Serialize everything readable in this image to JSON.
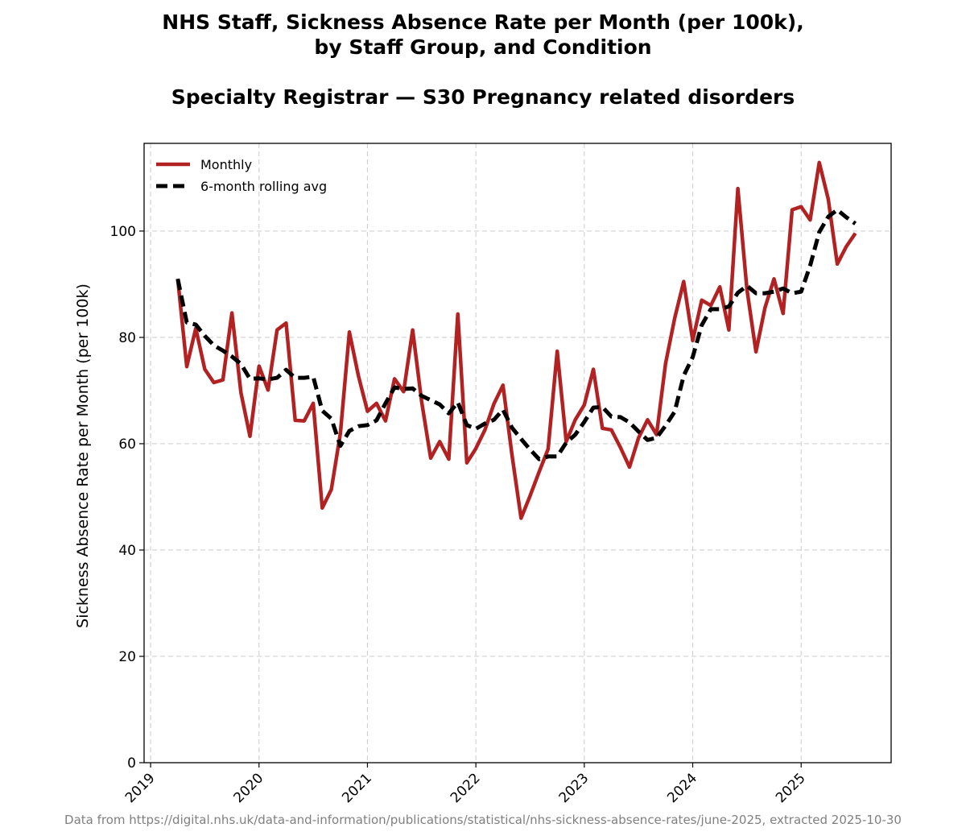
{
  "chart_data": {
    "type": "line",
    "title_line1": "NHS Staff, Sickness Absence Rate per Month (per 100k),",
    "title_line2": "by Staff Group, and Condition",
    "subtitle": "Specialty Registrar — S30 Pregnancy related disorders",
    "xlabel": "",
    "ylabel": "Sickness Absence Rate per Month (per 100k)",
    "xlim": [
      2018.94,
      2025.83
    ],
    "ylim": [
      0,
      116.5
    ],
    "yticks": [
      0,
      20,
      40,
      60,
      80,
      100
    ],
    "xticks": [
      2019,
      2020,
      2021,
      2022,
      2023,
      2024,
      2025
    ],
    "xtick_labels": [
      "2019",
      "2020",
      "2021",
      "2022",
      "2023",
      "2024",
      "2025"
    ],
    "grid": true,
    "legend_position": "top-left",
    "colors": {
      "monthly": "#b22222",
      "rolling": "#000000",
      "grid": "#d0d0d0",
      "footnote": "#808080"
    },
    "series": [
      {
        "name": "Monthly",
        "style": "solid",
        "start": "2019-04",
        "values": [
          91.0,
          74.5,
          81.7,
          74.0,
          71.5,
          72.0,
          84.6,
          69.6,
          61.4,
          74.6,
          70.1,
          81.4,
          82.7,
          64.4,
          64.3,
          67.6,
          47.9,
          51.4,
          61.9,
          81.0,
          72.8,
          66.1,
          67.6,
          64.3,
          72.2,
          69.8,
          81.4,
          67.9,
          57.3,
          60.4,
          57.1,
          84.4,
          56.4,
          59.1,
          62.6,
          67.5,
          71.0,
          57.9,
          46.0,
          50.2,
          54.7,
          59.0,
          77.4,
          60.4,
          64.5,
          67.3,
          74.0,
          62.9,
          62.6,
          59.3,
          55.6,
          61.1,
          64.5,
          61.7,
          75.1,
          83.6,
          90.5,
          79.4,
          87.0,
          86.0,
          89.5,
          81.4,
          108.0,
          89.0,
          77.3,
          85.6,
          91.0,
          84.5,
          104.0,
          104.6,
          102.1,
          112.9,
          106.0,
          93.8,
          97.1,
          99.6
        ]
      },
      {
        "name": "6-month rolling avg",
        "style": "dashed",
        "start": "2019-04",
        "values": [
          91.0,
          82.8,
          82.4,
          80.3,
          78.5,
          77.5,
          76.4,
          75.0,
          72.2,
          72.3,
          72.1,
          72.4,
          73.9,
          72.4,
          72.4,
          72.6,
          66.2,
          64.7,
          59.6,
          62.4,
          63.3,
          63.5,
          64.4,
          67.6,
          70.6,
          70.3,
          70.4,
          69.0,
          68.2,
          67.4,
          65.7,
          67.8,
          63.5,
          62.8,
          63.8,
          64.5,
          66.4,
          63.0,
          60.9,
          58.9,
          57.1,
          57.6,
          57.6,
          60.2,
          61.7,
          64.1,
          66.8,
          66.9,
          65.1,
          65.0,
          64.0,
          62.3,
          60.7,
          61.1,
          63.4,
          66.0,
          72.8,
          76.3,
          82.3,
          85.3,
          85.3,
          85.8,
          88.4,
          89.7,
          88.3,
          88.3,
          88.6,
          89.2,
          88.3,
          88.6,
          93.5,
          99.8,
          102.7,
          104.0,
          102.6,
          101.4
        ]
      }
    ]
  },
  "footnote": "Data from https://digital.nhs.uk/data-and-information/publications/statistical/nhs-sickness-absence-rates/june-2025, extracted 2025-10-30"
}
